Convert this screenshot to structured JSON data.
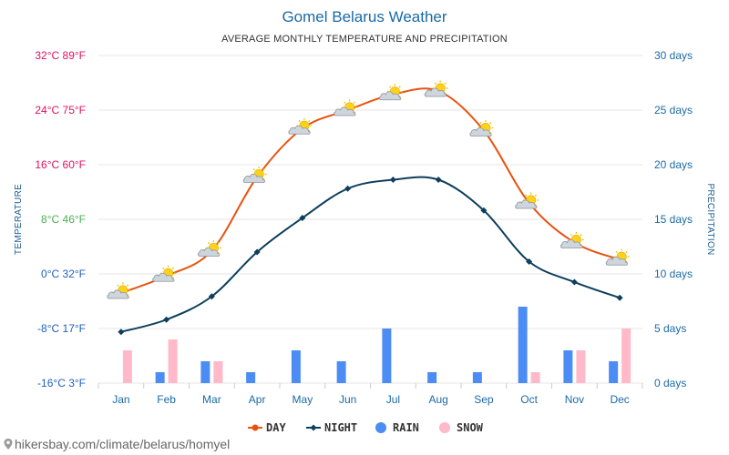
{
  "title": "Gomel Belarus Weather",
  "subtitle": "AVERAGE MONTHLY TEMPERATURE AND PRECIPITATION",
  "footer_text": "hikersbay.com/climate/belarus/homyel",
  "colors": {
    "day": "#e8520e",
    "night": "#0d3e5c",
    "rain": "#4c8cf5",
    "snow": "#ffb9c9",
    "grid": "#e6e6e6",
    "tick_hot": "#e0115f",
    "tick_warm": "#4caf50",
    "tick_cold": "#1f5fbf"
  },
  "chart_data": {
    "type": "line",
    "title": "Gomel Belarus Weather",
    "subtitle": "AVERAGE MONTHLY TEMPERATURE AND PRECIPITATION",
    "ylabel_left": "TEMPERATURE",
    "ylabel_right": "PRECIPITATION",
    "categories": [
      "Jan",
      "Feb",
      "Mar",
      "Apr",
      "May",
      "Jun",
      "Jul",
      "Aug",
      "Sep",
      "Oct",
      "Nov",
      "Dec"
    ],
    "left_axis": {
      "unit": "°C",
      "ylim": [
        -16,
        32
      ],
      "ticks": [
        {
          "value": 32,
          "label": "32°C 89°F",
          "tone": "hot"
        },
        {
          "value": 24,
          "label": "24°C 75°F",
          "tone": "hot"
        },
        {
          "value": 16,
          "label": "16°C 60°F",
          "tone": "hot"
        },
        {
          "value": 8,
          "label": "8°C 46°F",
          "tone": "warm"
        },
        {
          "value": 0,
          "label": "0°C 32°F",
          "tone": "cold"
        },
        {
          "value": -8,
          "label": "-8°C 17°F",
          "tone": "cold"
        },
        {
          "value": -16,
          "label": "-16°C 3°F",
          "tone": "cold"
        }
      ]
    },
    "right_axis": {
      "unit": "days",
      "ylim": [
        0,
        30
      ],
      "ticks": [
        {
          "value": 30,
          "label": "30 days"
        },
        {
          "value": 25,
          "label": "25 days"
        },
        {
          "value": 20,
          "label": "20 days"
        },
        {
          "value": 15,
          "label": "15 days"
        },
        {
          "value": 10,
          "label": "10 days"
        },
        {
          "value": 5,
          "label": "5 days"
        },
        {
          "value": 0,
          "label": "0 days"
        }
      ]
    },
    "series": [
      {
        "name": "DAY",
        "kind": "line",
        "axis": "left",
        "icon": "sun-cloud-icon",
        "values": [
          -2.8,
          -0.3,
          3.4,
          14.2,
          21.3,
          24.0,
          26.3,
          26.8,
          21.0,
          10.4,
          4.6,
          2.1
        ]
      },
      {
        "name": "NIGHT",
        "kind": "line",
        "axis": "left",
        "values": [
          -8.5,
          -6.7,
          -3.3,
          3.2,
          8.2,
          12.5,
          13.8,
          13.8,
          9.3,
          1.8,
          -1.2,
          -3.5
        ]
      },
      {
        "name": "RAIN",
        "kind": "bar",
        "axis": "right",
        "values": [
          0,
          1,
          2,
          1,
          3,
          2,
          5,
          1,
          1,
          7,
          3,
          2
        ]
      },
      {
        "name": "SNOW",
        "kind": "bar",
        "axis": "right",
        "values": [
          3,
          4,
          2,
          0,
          0,
          0,
          0,
          0,
          0,
          1,
          3,
          5
        ]
      }
    ],
    "grid": true,
    "legend_position": "bottom"
  }
}
